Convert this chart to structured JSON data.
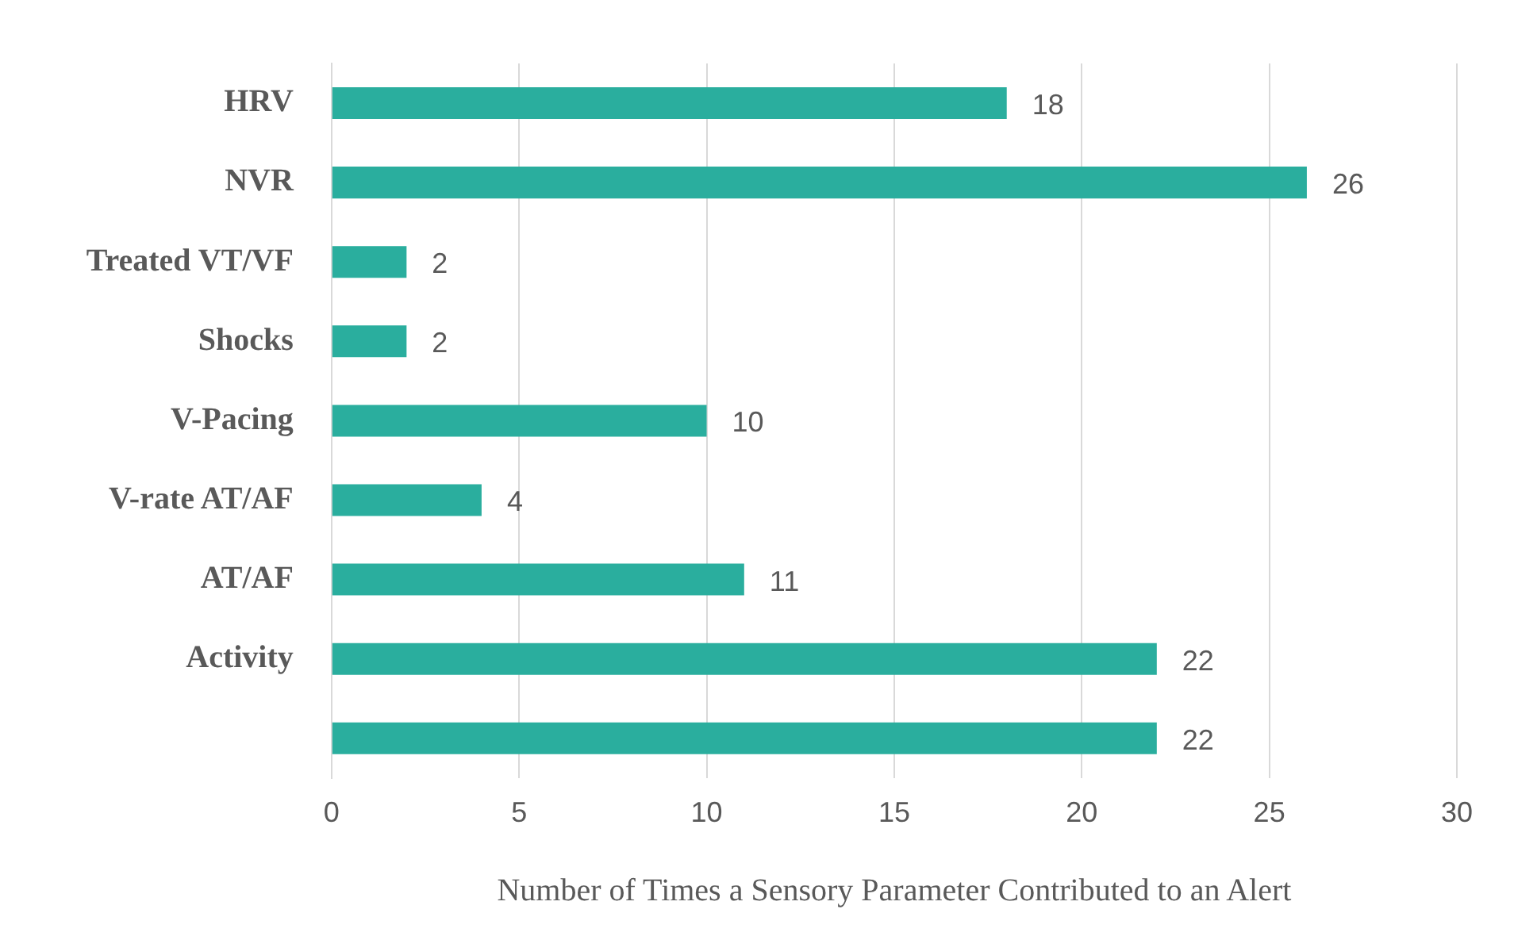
{
  "chart_data": {
    "type": "bar",
    "orientation": "horizontal",
    "xlabel": "Number of Times a Sensory Parameter Contributed to an Alert",
    "categories": [
      "HRV",
      "NVR",
      "Treated VT/VF",
      "Shocks",
      "V-Pacing",
      "V-rate AT/AF",
      "AT/AF",
      "Activity",
      null
    ],
    "values": [
      18,
      26,
      2,
      2,
      10,
      4,
      11,
      22,
      22
    ],
    "color": "#2aae9e",
    "xlim": [
      0,
      30
    ],
    "xticks": [
      0,
      5,
      10,
      15,
      20,
      25,
      30
    ],
    "grid": "x",
    "data_labels": true
  }
}
